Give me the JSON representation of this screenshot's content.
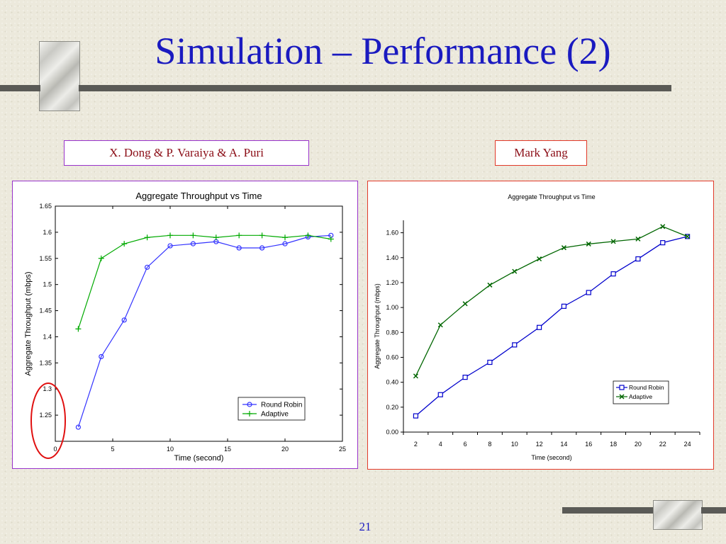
{
  "slide": {
    "title": "Simulation – Performance (2)",
    "page_number": "21",
    "author_left": "X. Dong & P. Varaiya & A. Puri",
    "author_right": "Mark Yang",
    "colors": {
      "title": "#1a1ac0",
      "author_text": "#8b0d16",
      "left_border": "#9933cc",
      "right_border": "#e23a2a",
      "highlight_circle": "#e01010"
    }
  },
  "chart_data": [
    {
      "type": "line",
      "title": "Aggregate Throughput vs Time",
      "xlabel": "Time (second)",
      "ylabel": "Aggregate Throughput (mbps)",
      "xlim": [
        0,
        25
      ],
      "ylim": [
        1.2,
        1.65
      ],
      "xticks": [
        "0",
        "5",
        "10",
        "15",
        "20",
        "25"
      ],
      "yticks": [
        "1.25",
        "1.3",
        "1.35",
        "1.4",
        "1.45",
        "1.5",
        "1.55",
        "1.6",
        "1.65"
      ],
      "legend_position": "bottom-right",
      "grid": false,
      "series": [
        {
          "name": "Round Robin",
          "color": "#3333ff",
          "marker": "circle",
          "x": [
            2,
            4,
            6,
            8,
            10,
            12,
            14,
            16,
            18,
            20,
            22,
            24
          ],
          "y": [
            1.227,
            1.362,
            1.432,
            1.533,
            1.574,
            1.578,
            1.582,
            1.57,
            1.57,
            1.578,
            1.591,
            1.594
          ]
        },
        {
          "name": "Adaptive",
          "color": "#00aa00",
          "marker": "plus",
          "x": [
            2,
            4,
            6,
            8,
            10,
            12,
            14,
            16,
            18,
            20,
            22,
            24
          ],
          "y": [
            1.415,
            1.55,
            1.578,
            1.59,
            1.594,
            1.594,
            1.59,
            1.594,
            1.594,
            1.59,
            1.594,
            1.587
          ]
        }
      ]
    },
    {
      "type": "line",
      "title": "Aggregate Throughput vs Time",
      "xlabel": "Time (second)",
      "ylabel": "Aggregate Throughput (mbps)",
      "xlim": [
        2,
        24
      ],
      "ylim": [
        0,
        1.7
      ],
      "xticks": [
        "2",
        "4",
        "6",
        "8",
        "10",
        "12",
        "14",
        "16",
        "18",
        "20",
        "22",
        "24"
      ],
      "yticks": [
        "0.00",
        "0.20",
        "0.40",
        "0.60",
        "0.80",
        "1.00",
        "1.20",
        "1.40",
        "1.60"
      ],
      "legend_position": "bottom-right",
      "grid": false,
      "series": [
        {
          "name": "Round Robin",
          "color": "#0000cc",
          "marker": "square",
          "x": [
            2,
            4,
            6,
            8,
            10,
            12,
            14,
            16,
            18,
            20,
            22,
            24
          ],
          "y": [
            0.13,
            0.3,
            0.44,
            0.56,
            0.7,
            0.84,
            1.01,
            1.12,
            1.27,
            1.39,
            1.52,
            1.57
          ]
        },
        {
          "name": "Adaptive",
          "color": "#006600",
          "marker": "x",
          "x": [
            2,
            4,
            6,
            8,
            10,
            12,
            14,
            16,
            18,
            20,
            22,
            24
          ],
          "y": [
            0.45,
            0.86,
            1.03,
            1.18,
            1.29,
            1.39,
            1.48,
            1.51,
            1.53,
            1.55,
            1.65,
            1.57
          ]
        }
      ]
    }
  ]
}
